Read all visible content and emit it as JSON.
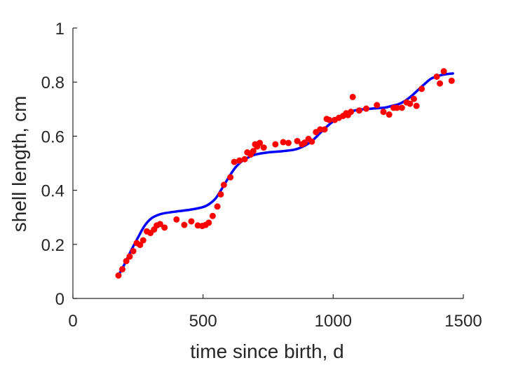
{
  "chart_data": {
    "type": "scatter",
    "title": "",
    "xlabel": "time since birth, d",
    "ylabel": "shell length, cm",
    "xlim": [
      0,
      1500
    ],
    "ylim": [
      0,
      1
    ],
    "xticks": [
      0,
      500,
      1000,
      1500
    ],
    "yticks": [
      0,
      0.2,
      0.4,
      0.6,
      0.8,
      1
    ],
    "xtick_labels": [
      "0",
      "500",
      "1000",
      "1500"
    ],
    "ytick_labels": [
      "0",
      "0.2",
      "0.4",
      "0.6",
      "0.8",
      "1"
    ],
    "grid": false,
    "box": false,
    "series": [
      {
        "kind": "scatter",
        "color": "#ff0000",
        "points": [
          [
            175,
            0.085
          ],
          [
            190,
            0.108
          ],
          [
            205,
            0.138
          ],
          [
            218,
            0.155
          ],
          [
            232,
            0.175
          ],
          [
            245,
            0.205
          ],
          [
            258,
            0.198
          ],
          [
            270,
            0.215
          ],
          [
            284,
            0.248
          ],
          [
            298,
            0.242
          ],
          [
            312,
            0.255
          ],
          [
            322,
            0.27
          ],
          [
            335,
            0.275
          ],
          [
            352,
            0.262
          ],
          [
            398,
            0.292
          ],
          [
            428,
            0.272
          ],
          [
            455,
            0.285
          ],
          [
            480,
            0.27
          ],
          [
            497,
            0.268
          ],
          [
            510,
            0.272
          ],
          [
            522,
            0.28
          ],
          [
            537,
            0.305
          ],
          [
            555,
            0.34
          ],
          [
            568,
            0.385
          ],
          [
            580,
            0.42
          ],
          [
            605,
            0.448
          ],
          [
            620,
            0.505
          ],
          [
            640,
            0.51
          ],
          [
            660,
            0.515
          ],
          [
            670,
            0.54
          ],
          [
            683,
            0.532
          ],
          [
            693,
            0.545
          ],
          [
            700,
            0.57
          ],
          [
            708,
            0.562
          ],
          [
            718,
            0.575
          ],
          [
            733,
            0.558
          ],
          [
            778,
            0.57
          ],
          [
            808,
            0.578
          ],
          [
            828,
            0.575
          ],
          [
            862,
            0.582
          ],
          [
            880,
            0.57
          ],
          [
            890,
            0.576
          ],
          [
            905,
            0.59
          ],
          [
            918,
            0.58
          ],
          [
            934,
            0.615
          ],
          [
            950,
            0.625
          ],
          [
            967,
            0.625
          ],
          [
            975,
            0.664
          ],
          [
            985,
            0.66
          ],
          [
            1006,
            0.66
          ],
          [
            1022,
            0.668
          ],
          [
            1038,
            0.675
          ],
          [
            1050,
            0.685
          ],
          [
            1057,
            0.678
          ],
          [
            1068,
            0.69
          ],
          [
            1075,
            0.745
          ],
          [
            1100,
            0.695
          ],
          [
            1127,
            0.702
          ],
          [
            1168,
            0.715
          ],
          [
            1193,
            0.69
          ],
          [
            1215,
            0.68
          ],
          [
            1232,
            0.705
          ],
          [
            1245,
            0.705
          ],
          [
            1264,
            0.705
          ],
          [
            1282,
            0.725
          ],
          [
            1295,
            0.72
          ],
          [
            1310,
            0.738
          ],
          [
            1320,
            0.712
          ],
          [
            1340,
            0.775
          ],
          [
            1398,
            0.82
          ],
          [
            1410,
            0.795
          ],
          [
            1425,
            0.84
          ],
          [
            1455,
            0.805
          ]
        ]
      },
      {
        "kind": "line",
        "color": "#0000ff",
        "points": [
          [
            175,
            0.085
          ],
          [
            200,
            0.13
          ],
          [
            225,
            0.18
          ],
          [
            250,
            0.225
          ],
          [
            275,
            0.268
          ],
          [
            300,
            0.295
          ],
          [
            325,
            0.308
          ],
          [
            350,
            0.315
          ],
          [
            400,
            0.322
          ],
          [
            450,
            0.328
          ],
          [
            500,
            0.338
          ],
          [
            525,
            0.35
          ],
          [
            550,
            0.372
          ],
          [
            575,
            0.41
          ],
          [
            600,
            0.45
          ],
          [
            625,
            0.485
          ],
          [
            650,
            0.508
          ],
          [
            675,
            0.522
          ],
          [
            700,
            0.532
          ],
          [
            750,
            0.54
          ],
          [
            800,
            0.544
          ],
          [
            850,
            0.55
          ],
          [
            875,
            0.558
          ],
          [
            900,
            0.57
          ],
          [
            925,
            0.588
          ],
          [
            950,
            0.612
          ],
          [
            975,
            0.635
          ],
          [
            1000,
            0.655
          ],
          [
            1025,
            0.672
          ],
          [
            1050,
            0.685
          ],
          [
            1075,
            0.693
          ],
          [
            1100,
            0.698
          ],
          [
            1150,
            0.702
          ],
          [
            1200,
            0.706
          ],
          [
            1225,
            0.712
          ],
          [
            1250,
            0.718
          ],
          [
            1275,
            0.73
          ],
          [
            1300,
            0.748
          ],
          [
            1325,
            0.77
          ],
          [
            1350,
            0.792
          ],
          [
            1375,
            0.812
          ],
          [
            1400,
            0.822
          ],
          [
            1425,
            0.828
          ],
          [
            1460,
            0.832
          ]
        ]
      }
    ]
  }
}
